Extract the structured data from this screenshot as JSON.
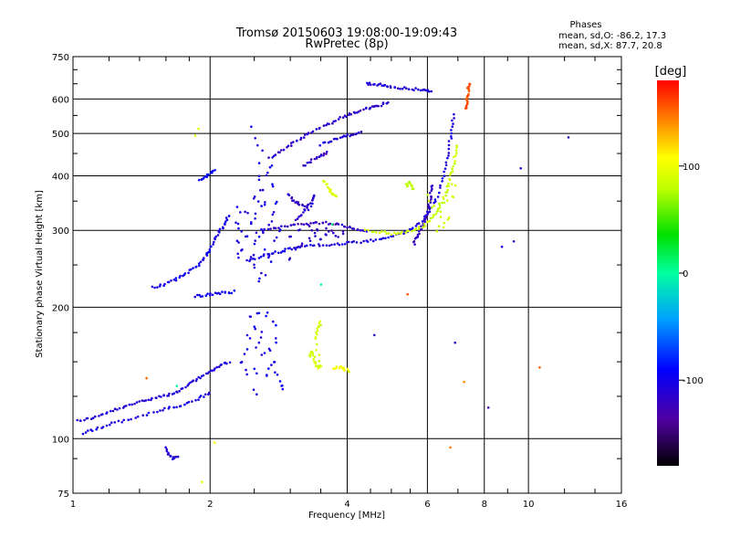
{
  "chart_data": {
    "type": "scatter",
    "title": "Tromsø 20150603 19:08:00-19:09:43",
    "subtitle": "RwPretec (8p)",
    "xlabel": "Frequency [MHz]",
    "ylabel": "Stationary phase Virtual Height [km]",
    "xscale": "log",
    "yscale": "log",
    "xlim": [
      1,
      16
    ],
    "ylim": [
      75,
      750
    ],
    "xticks": [
      1,
      2,
      4,
      6,
      8,
      10,
      16
    ],
    "yticks": [
      75,
      100,
      200,
      300,
      400,
      500,
      600,
      750
    ],
    "grid": true,
    "info": {
      "header": "Phases",
      "line1": "mean, sd,O: -86.2, 17.3",
      "line2": "mean, sd,X:  87.7, 20.8"
    },
    "colorbar": {
      "label": "[deg]",
      "range": [
        -180,
        180
      ],
      "ticks": [
        100,
        0,
        -100
      ]
    },
    "traces": [
      {
        "phase": -110,
        "points": [
          [
            1.02,
            110
          ],
          [
            1.08,
            111
          ],
          [
            1.15,
            113
          ],
          [
            1.22,
            116
          ],
          [
            1.3,
            118
          ],
          [
            1.38,
            121
          ],
          [
            1.46,
            123
          ],
          [
            1.55,
            125
          ],
          [
            1.62,
            126
          ],
          [
            1.7,
            128
          ],
          [
            1.78,
            132
          ],
          [
            1.86,
            136
          ],
          [
            1.94,
            140
          ],
          [
            2.02,
            143
          ],
          [
            2.1,
            147
          ],
          [
            2.2,
            150
          ]
        ]
      },
      {
        "phase": -105,
        "points": [
          [
            1.05,
            103
          ],
          [
            1.12,
            105
          ],
          [
            1.2,
            108
          ],
          [
            1.3,
            110
          ],
          [
            1.42,
            113
          ],
          [
            1.55,
            116
          ],
          [
            1.66,
            118
          ],
          [
            1.78,
            120
          ],
          [
            1.9,
            124
          ],
          [
            2.0,
            127
          ]
        ]
      },
      {
        "phase": -100,
        "points": [
          [
            1.5,
            222
          ],
          [
            1.58,
            225
          ],
          [
            1.66,
            230
          ],
          [
            1.74,
            236
          ],
          [
            1.82,
            244
          ],
          [
            1.9,
            252
          ],
          [
            1.96,
            262
          ],
          [
            2.0,
            272
          ],
          [
            2.04,
            285
          ],
          [
            2.1,
            298
          ],
          [
            2.16,
            312
          ],
          [
            2.2,
            325
          ]
        ]
      },
      {
        "phase": -100,
        "points": [
          [
            1.85,
            212
          ],
          [
            1.95,
            213
          ],
          [
            2.05,
            215
          ],
          [
            2.15,
            216
          ],
          [
            2.25,
            217
          ]
        ]
      },
      {
        "phase": -95,
        "points": [
          [
            1.9,
            392
          ],
          [
            1.95,
            398
          ],
          [
            2.0,
            405
          ],
          [
            2.04,
            410
          ]
        ]
      },
      {
        "phase": -105,
        "points": [
          [
            2.4,
            255
          ],
          [
            2.55,
            260
          ],
          [
            2.7,
            265
          ],
          [
            2.85,
            268
          ],
          [
            3.0,
            272
          ],
          [
            3.15,
            275
          ],
          [
            3.35,
            277
          ],
          [
            3.6,
            278
          ],
          [
            3.85,
            279
          ],
          [
            4.1,
            281
          ],
          [
            4.4,
            283
          ],
          [
            4.7,
            286
          ],
          [
            5.0,
            290
          ],
          [
            5.3,
            296
          ],
          [
            5.6,
            304
          ],
          [
            5.9,
            318
          ],
          [
            6.1,
            335
          ],
          [
            6.3,
            360
          ],
          [
            6.5,
            395
          ],
          [
            6.6,
            430
          ],
          [
            6.7,
            470
          ],
          [
            6.8,
            510
          ],
          [
            6.85,
            550
          ]
        ]
      },
      {
        "phase": -120,
        "points": [
          [
            2.6,
            300
          ],
          [
            2.8,
            305
          ],
          [
            3.0,
            308
          ],
          [
            3.2,
            310
          ],
          [
            3.4,
            312
          ],
          [
            3.6,
            312
          ],
          [
            3.8,
            310
          ],
          [
            4.0,
            306
          ],
          [
            4.2,
            302
          ],
          [
            4.4,
            298
          ]
        ]
      },
      {
        "phase": -115,
        "points": [
          [
            2.7,
            440
          ],
          [
            2.85,
            455
          ],
          [
            3.0,
            470
          ],
          [
            3.15,
            485
          ],
          [
            3.3,
            500
          ],
          [
            3.5,
            515
          ],
          [
            3.7,
            530
          ],
          [
            3.9,
            545
          ],
          [
            4.1,
            555
          ],
          [
            4.3,
            565
          ],
          [
            4.5,
            572
          ],
          [
            4.7,
            580
          ],
          [
            4.9,
            588
          ]
        ]
      },
      {
        "phase": -110,
        "points": [
          [
            3.5,
            472
          ],
          [
            3.7,
            482
          ],
          [
            3.9,
            490
          ],
          [
            4.1,
            498
          ],
          [
            4.3,
            504
          ]
        ]
      },
      {
        "phase": -110,
        "points": [
          [
            4.4,
            650
          ],
          [
            4.6,
            648
          ],
          [
            4.8,
            645
          ],
          [
            5.0,
            640
          ],
          [
            5.3,
            635
          ],
          [
            5.6,
            632
          ],
          [
            5.9,
            630
          ],
          [
            6.1,
            626
          ]
        ]
      },
      {
        "phase": -115,
        "points": [
          [
            3.1,
            315
          ],
          [
            3.2,
            330
          ],
          [
            3.3,
            345
          ],
          [
            3.4,
            360
          ],
          [
            3.3,
            335
          ],
          [
            3.15,
            345
          ],
          [
            3.05,
            350
          ],
          [
            2.98,
            362
          ]
        ]
      },
      {
        "phase": -120,
        "points": [
          [
            3.2,
            420
          ],
          [
            3.35,
            435
          ],
          [
            3.5,
            445
          ],
          [
            3.6,
            452
          ]
        ]
      },
      {
        "phase": -120,
        "points": [
          [
            5.6,
            280
          ],
          [
            5.7,
            290
          ],
          [
            5.8,
            300
          ],
          [
            5.9,
            312
          ],
          [
            6.0,
            330
          ],
          [
            6.05,
            345
          ],
          [
            6.1,
            360
          ],
          [
            6.12,
            380
          ]
        ]
      },
      {
        "phase": -110,
        "points": [
          [
            1.6,
            95
          ],
          [
            1.63,
            92
          ],
          [
            1.66,
            90
          ],
          [
            1.7,
            91
          ]
        ]
      },
      {
        "phase": 85,
        "points": [
          [
            4.4,
            300
          ],
          [
            4.7,
            298
          ],
          [
            5.0,
            295
          ],
          [
            5.3,
            296
          ],
          [
            5.6,
            300
          ],
          [
            5.9,
            308
          ],
          [
            6.1,
            318
          ],
          [
            6.3,
            330
          ],
          [
            6.4,
            345
          ],
          [
            6.6,
            365
          ],
          [
            6.7,
            385
          ],
          [
            6.8,
            410
          ],
          [
            6.9,
            440
          ],
          [
            6.95,
            470
          ]
        ]
      },
      {
        "phase": 90,
        "points": [
          [
            3.3,
            155
          ],
          [
            3.35,
            158
          ],
          [
            3.4,
            150
          ],
          [
            3.45,
            145
          ],
          [
            3.5,
            147
          ],
          [
            3.4,
            170
          ],
          [
            3.45,
            178
          ],
          [
            3.5,
            185
          ]
        ]
      },
      {
        "phase": 90,
        "points": [
          [
            3.55,
            390
          ],
          [
            3.65,
            375
          ],
          [
            3.7,
            365
          ],
          [
            3.8,
            358
          ]
        ]
      },
      {
        "phase": 80,
        "points": [
          [
            5.4,
            380
          ],
          [
            5.5,
            385
          ],
          [
            5.6,
            372
          ]
        ]
      },
      {
        "phase": 100,
        "points": [
          [
            3.75,
            145
          ],
          [
            3.85,
            146
          ],
          [
            3.95,
            144
          ],
          [
            4.05,
            143
          ]
        ]
      },
      {
        "phase": 160,
        "points": [
          [
            7.3,
            570
          ],
          [
            7.32,
            590
          ],
          [
            7.35,
            610
          ],
          [
            7.38,
            630
          ],
          [
            7.4,
            650
          ]
        ]
      }
    ],
    "scatter": [
      {
        "phase": -105,
        "points": [
          [
            2.5,
            250
          ],
          [
            2.5,
            280
          ],
          [
            2.5,
            320
          ],
          [
            2.5,
            360
          ],
          [
            2.55,
            400
          ],
          [
            2.6,
            300
          ],
          [
            2.6,
            340
          ],
          [
            2.65,
            270
          ],
          [
            2.7,
            310
          ],
          [
            2.75,
            380
          ],
          [
            2.8,
            290
          ],
          [
            2.55,
            230
          ],
          [
            2.6,
            240
          ],
          [
            2.65,
            350
          ],
          [
            2.7,
            260
          ],
          [
            2.75,
            330
          ],
          [
            2.8,
            350
          ],
          [
            2.85,
            300
          ],
          [
            2.55,
            290
          ],
          [
            2.6,
            370
          ],
          [
            2.7,
            420
          ],
          [
            2.65,
            400
          ]
        ]
      },
      {
        "phase": -100,
        "points": [
          [
            2.35,
            150
          ],
          [
            2.4,
            160
          ],
          [
            2.45,
            170
          ],
          [
            2.5,
            180
          ],
          [
            2.55,
            165
          ],
          [
            2.6,
            175
          ],
          [
            2.65,
            190
          ],
          [
            2.7,
            160
          ],
          [
            2.75,
            150
          ],
          [
            2.8,
            140
          ],
          [
            2.85,
            135
          ],
          [
            2.9,
            130
          ],
          [
            2.4,
            140
          ],
          [
            2.5,
            145
          ],
          [
            2.6,
            155
          ],
          [
            2.7,
            145
          ],
          [
            2.75,
            185
          ],
          [
            2.8,
            170
          ],
          [
            2.45,
            190
          ],
          [
            2.55,
            195
          ],
          [
            2.65,
            140
          ],
          [
            2.5,
            130
          ]
        ]
      },
      {
        "phase": -105,
        "points": [
          [
            2.3,
            260
          ],
          [
            2.3,
            280
          ],
          [
            2.3,
            310
          ],
          [
            2.35,
            300
          ],
          [
            2.35,
            270
          ],
          [
            2.4,
            290
          ],
          [
            2.4,
            330
          ],
          [
            2.45,
            310
          ],
          [
            2.45,
            260
          ],
          [
            2.3,
            340
          ]
        ]
      },
      {
        "phase": -100,
        "points": [
          [
            2.5,
            490
          ],
          [
            2.55,
            470
          ],
          [
            2.6,
            455
          ],
          [
            2.45,
            520
          ],
          [
            2.55,
            430
          ]
        ]
      },
      {
        "phase": -120,
        "points": [
          [
            3.0,
            260
          ],
          [
            3.1,
            270
          ],
          [
            3.2,
            280
          ],
          [
            3.3,
            285
          ],
          [
            3.4,
            290
          ],
          [
            3.5,
            285
          ],
          [
            3.6,
            295
          ],
          [
            3.7,
            300
          ],
          [
            3.8,
            290
          ],
          [
            3.9,
            295
          ],
          [
            3.0,
            290
          ],
          [
            3.15,
            300
          ],
          [
            3.3,
            305
          ],
          [
            3.45,
            300
          ],
          [
            3.6,
            305
          ]
        ]
      },
      {
        "phase": 85,
        "points": [
          [
            6.0,
            360
          ],
          [
            6.2,
            340
          ],
          [
            6.4,
            330
          ],
          [
            6.5,
            310
          ],
          [
            6.6,
            350
          ],
          [
            6.8,
            360
          ],
          [
            6.3,
            300
          ],
          [
            6.7,
            320
          ],
          [
            6.9,
            380
          ]
        ]
      },
      {
        "phase": 150,
        "points": [
          [
            1.45,
            138
          ],
          [
            6.75,
            95
          ],
          [
            7.2,
            135
          ],
          [
            5.45,
            215
          ],
          [
            10.6,
            145
          ]
        ]
      },
      {
        "phase": -115,
        "points": [
          [
            6.9,
            165
          ],
          [
            8.2,
            118
          ],
          [
            8.7,
            275
          ],
          [
            9.3,
            282
          ],
          [
            9.6,
            415
          ],
          [
            12.2,
            490
          ],
          [
            4.6,
            172
          ]
        ]
      },
      {
        "phase": 95,
        "points": [
          [
            1.85,
            495
          ],
          [
            1.88,
            510
          ],
          [
            2.04,
            98
          ],
          [
            1.92,
            80
          ]
        ]
      },
      {
        "phase": 0,
        "points": [
          [
            1.7,
            132
          ],
          [
            3.5,
            225
          ],
          [
            3.7,
            310
          ]
        ]
      }
    ]
  }
}
